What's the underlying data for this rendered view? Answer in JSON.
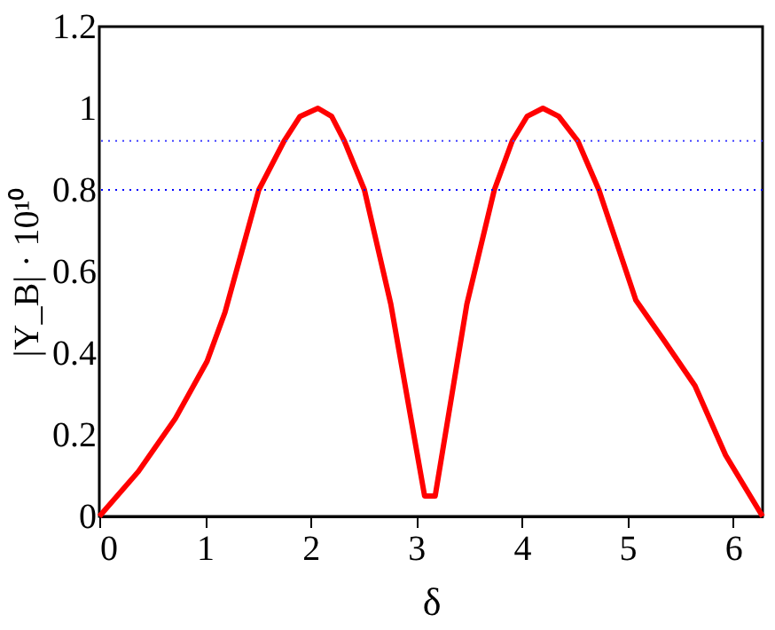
{
  "chart_data": {
    "type": "line",
    "xlabel": "δ",
    "ylabel": "|Y_B| · 10¹⁰",
    "x": [
      0,
      0.37,
      0.72,
      1.02,
      1.19,
      1.51,
      1.75,
      1.9,
      2.07,
      2.2,
      2.32,
      2.51,
      2.76,
      3.08,
      3.18,
      3.48,
      3.74,
      3.91,
      4.05,
      4.2,
      4.35,
      4.53,
      4.73,
      5.08,
      5.35,
      5.64,
      5.93,
      6.28
    ],
    "series": [
      {
        "color": "#ff0000",
        "values": [
          0,
          0.11,
          0.24,
          0.38,
          0.5,
          0.8,
          0.92,
          0.98,
          1.0,
          0.98,
          0.92,
          0.8,
          0.52,
          0.05,
          0.05,
          0.52,
          0.8,
          0.92,
          0.98,
          1.0,
          0.98,
          0.92,
          0.8,
          0.53,
          0.43,
          0.32,
          0.15,
          0
        ]
      }
    ],
    "xlim": [
      0,
      6.28
    ],
    "xticks": [
      0,
      1,
      2,
      3,
      4,
      5,
      6
    ],
    "ylim": [
      0,
      1.2
    ],
    "yticks": [
      0,
      0.2,
      0.4,
      0.6,
      0.8,
      1,
      1.2
    ],
    "ref_lines": [
      {
        "axis": "y",
        "value": 0.92,
        "color": "#4444ff",
        "line_style": "dotted"
      },
      {
        "axis": "y",
        "value": 0.8,
        "color": "#0000ff",
        "line_style": "dotted"
      }
    ],
    "grid": false,
    "marker": "none",
    "line_style": "solid"
  }
}
